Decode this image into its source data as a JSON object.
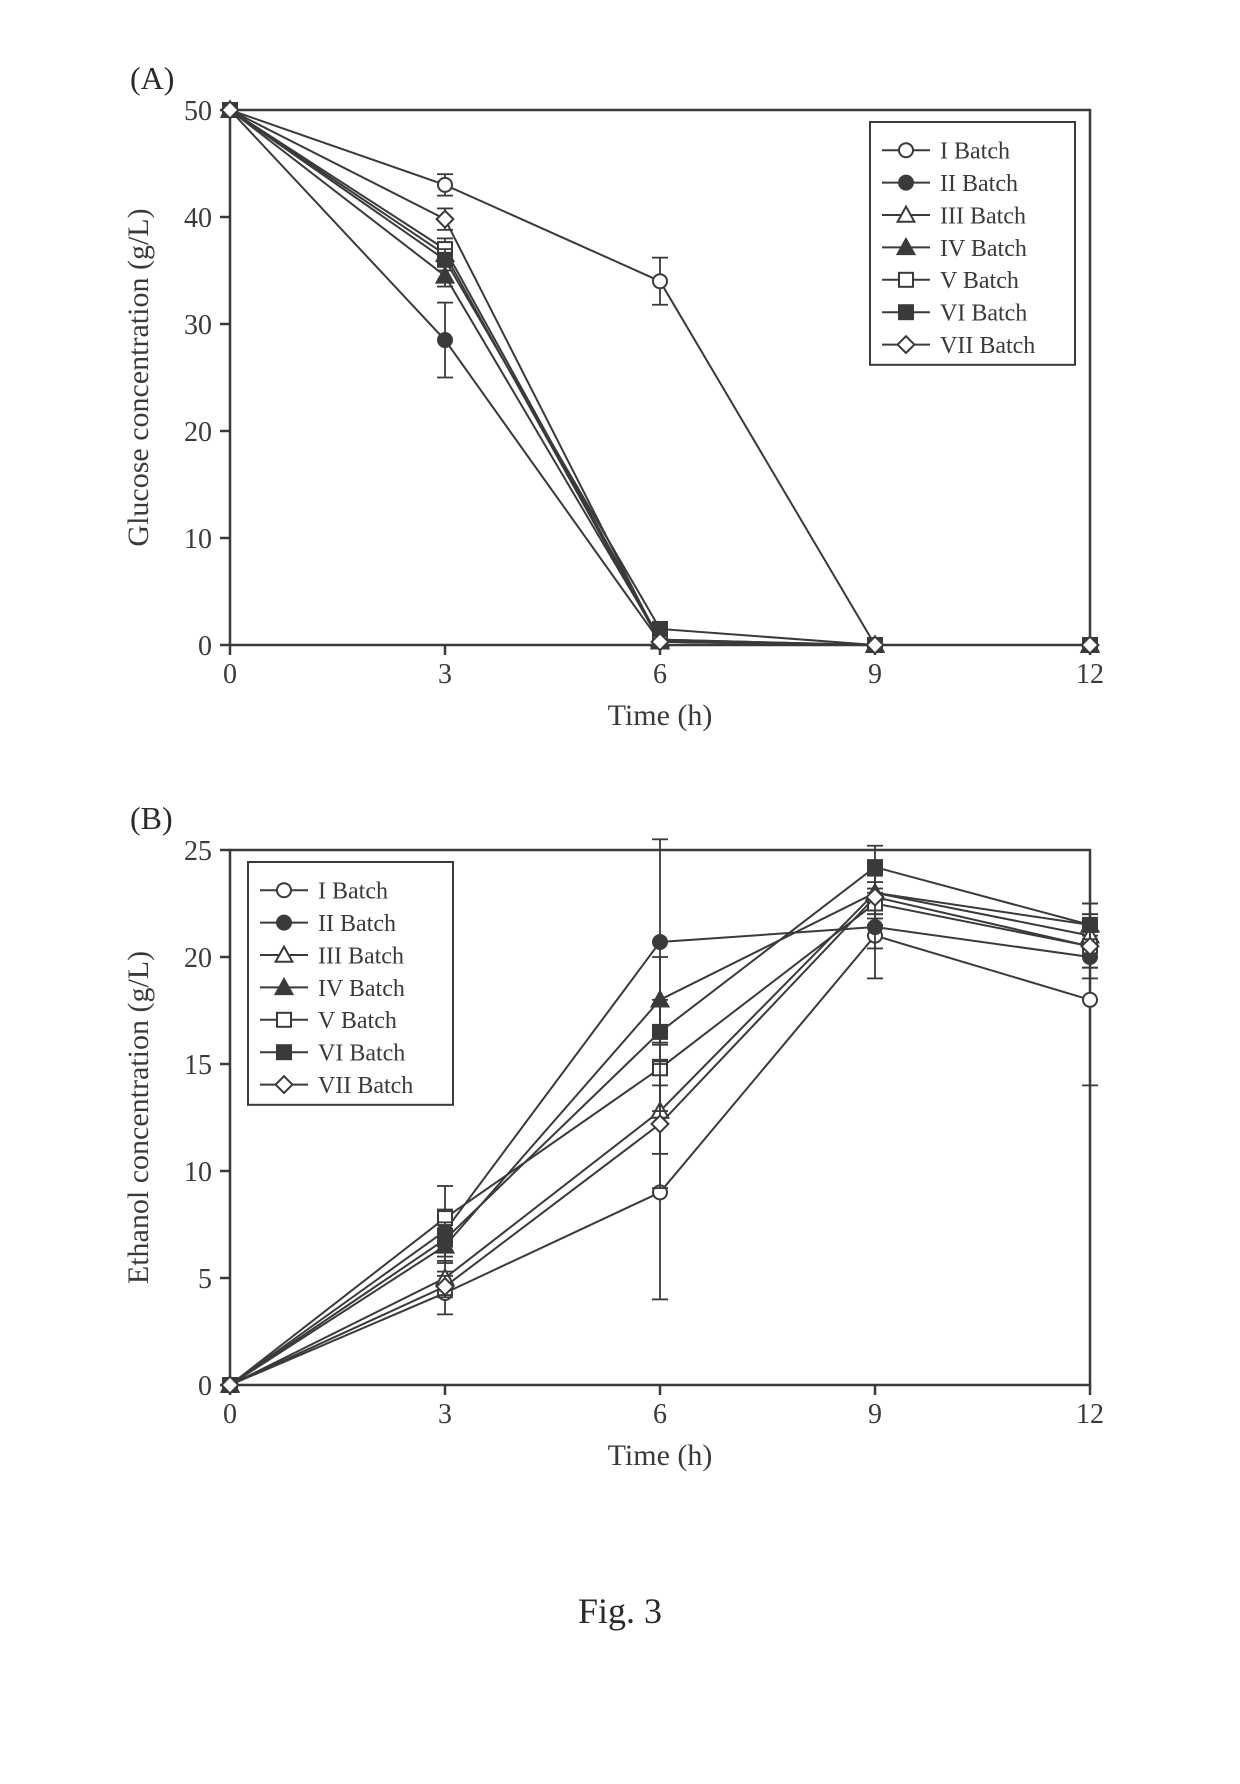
{
  "figure": {
    "caption": "Fig. 3",
    "caption_fontsize": 36,
    "font_family": "Times New Roman",
    "text_color": "#2a2a2a",
    "panelA": {
      "label": "(A)",
      "type": "line-scatter",
      "xlabel": "Time (h)",
      "ylabel": "Glucose concentration (g/L)",
      "label_fontsize": 30,
      "tick_fontsize": 28,
      "xlim": [
        0,
        12
      ],
      "ylim": [
        0,
        50
      ],
      "xticks": [
        0,
        3,
        6,
        9,
        12
      ],
      "yticks": [
        0,
        10,
        20,
        30,
        40,
        50
      ],
      "plot_bg": "#ffffff",
      "axis_color": "#3a3a3a",
      "axis_width": 2.5,
      "tick_len": 10,
      "marker_size": 7,
      "line_width": 2,
      "legend": {
        "position": "top-right-inside",
        "border_color": "#3a3a3a",
        "border_width": 2,
        "bg": "#ffffff",
        "fontsize": 24
      },
      "series": [
        {
          "name": "I Batch",
          "marker": "circle",
          "fill": "none",
          "stroke": "#3a3a3a",
          "x": [
            0,
            3,
            6,
            9,
            12
          ],
          "y": [
            50,
            43.0,
            34.0,
            0.0,
            0.0
          ],
          "err": [
            0,
            1.0,
            2.2,
            0,
            0
          ]
        },
        {
          "name": "II Batch",
          "marker": "circle",
          "fill": "#3a3a3a",
          "stroke": "#3a3a3a",
          "x": [
            0,
            3,
            6,
            9,
            12
          ],
          "y": [
            50,
            28.5,
            0.3,
            0.0,
            0.0
          ],
          "err": [
            0,
            3.5,
            0,
            0,
            0
          ]
        },
        {
          "name": "III Batch",
          "marker": "triangle",
          "fill": "none",
          "stroke": "#3a3a3a",
          "x": [
            0,
            3,
            6,
            9,
            12
          ],
          "y": [
            50,
            36.5,
            0.3,
            0.0,
            0.0
          ],
          "err": [
            0,
            1.0,
            0,
            0,
            0
          ]
        },
        {
          "name": "IV Batch",
          "marker": "triangle",
          "fill": "#3a3a3a",
          "stroke": "#3a3a3a",
          "x": [
            0,
            3,
            6,
            9,
            12
          ],
          "y": [
            50,
            34.5,
            0.5,
            0.0,
            0.0
          ],
          "err": [
            0,
            1.0,
            0,
            0,
            0
          ]
        },
        {
          "name": "V Batch",
          "marker": "square",
          "fill": "none",
          "stroke": "#3a3a3a",
          "x": [
            0,
            3,
            6,
            9,
            12
          ],
          "y": [
            50,
            37.0,
            0.5,
            0.0,
            0.0
          ],
          "err": [
            0,
            1.0,
            0,
            0,
            0
          ]
        },
        {
          "name": "VI Batch",
          "marker": "square",
          "fill": "#3a3a3a",
          "stroke": "#3a3a3a",
          "x": [
            0,
            3,
            6,
            9,
            12
          ],
          "y": [
            50,
            36.0,
            1.5,
            0.0,
            0.0
          ],
          "err": [
            0,
            1.0,
            0.5,
            0,
            0
          ]
        },
        {
          "name": "VII Batch",
          "marker": "diamond",
          "fill": "none",
          "stroke": "#3a3a3a",
          "x": [
            0,
            3,
            6,
            9,
            12
          ],
          "y": [
            50,
            39.8,
            0.3,
            0.0,
            0.0
          ],
          "err": [
            0,
            1.0,
            0,
            0,
            0
          ]
        }
      ]
    },
    "panelB": {
      "label": "(B)",
      "type": "line-scatter",
      "xlabel": "Time (h)",
      "ylabel": "Ethanol concentration (g/L)",
      "label_fontsize": 30,
      "tick_fontsize": 28,
      "xlim": [
        0,
        12
      ],
      "ylim": [
        0,
        25
      ],
      "xticks": [
        0,
        3,
        6,
        9,
        12
      ],
      "yticks": [
        0,
        5,
        10,
        15,
        20,
        25
      ],
      "plot_bg": "#ffffff",
      "axis_color": "#3a3a3a",
      "axis_width": 2.5,
      "tick_len": 10,
      "marker_size": 7,
      "line_width": 2,
      "legend": {
        "position": "top-left-inside",
        "border_color": "#3a3a3a",
        "border_width": 2,
        "bg": "#ffffff",
        "fontsize": 24
      },
      "series": [
        {
          "name": "I Batch",
          "marker": "circle",
          "fill": "none",
          "stroke": "#3a3a3a",
          "x": [
            0,
            3,
            6,
            9,
            12
          ],
          "y": [
            0,
            4.3,
            9.0,
            21.0,
            18.0
          ],
          "err": [
            0,
            1.0,
            5.0,
            2.0,
            4.0
          ]
        },
        {
          "name": "II Batch",
          "marker": "circle",
          "fill": "#3a3a3a",
          "stroke": "#3a3a3a",
          "x": [
            0,
            3,
            6,
            9,
            12
          ],
          "y": [
            0,
            7.2,
            20.7,
            21.4,
            20.0
          ],
          "err": [
            0,
            1.0,
            4.8,
            1.0,
            1.0
          ]
        },
        {
          "name": "III Batch",
          "marker": "triangle",
          "fill": "none",
          "stroke": "#3a3a3a",
          "x": [
            0,
            3,
            6,
            9,
            12
          ],
          "y": [
            0,
            5.0,
            12.8,
            23.0,
            21.0
          ],
          "err": [
            0,
            0.8,
            2.0,
            1.0,
            1.0
          ]
        },
        {
          "name": "IV Batch",
          "marker": "triangle",
          "fill": "#3a3a3a",
          "stroke": "#3a3a3a",
          "x": [
            0,
            3,
            6,
            9,
            12
          ],
          "y": [
            0,
            6.5,
            18.0,
            23.0,
            21.5
          ],
          "err": [
            0,
            0.8,
            2.0,
            1.0,
            1.0
          ]
        },
        {
          "name": "V Batch",
          "marker": "square",
          "fill": "none",
          "stroke": "#3a3a3a",
          "x": [
            0,
            3,
            6,
            9,
            12
          ],
          "y": [
            0,
            7.8,
            14.8,
            22.5,
            20.5
          ],
          "err": [
            0,
            1.5,
            2.0,
            1.0,
            1.0
          ]
        },
        {
          "name": "VI Batch",
          "marker": "square",
          "fill": "#3a3a3a",
          "stroke": "#3a3a3a",
          "x": [
            0,
            3,
            6,
            9,
            12
          ],
          "y": [
            0,
            6.8,
            16.5,
            24.2,
            21.5
          ],
          "err": [
            0,
            0.8,
            1.5,
            1.0,
            1.0
          ]
        },
        {
          "name": "VII Batch",
          "marker": "diamond",
          "fill": "none",
          "stroke": "#3a3a3a",
          "x": [
            0,
            3,
            6,
            9,
            12
          ],
          "y": [
            0,
            4.6,
            12.2,
            22.8,
            20.5
          ],
          "err": [
            0,
            0.5,
            3.0,
            1.0,
            1.0
          ]
        }
      ]
    }
  }
}
